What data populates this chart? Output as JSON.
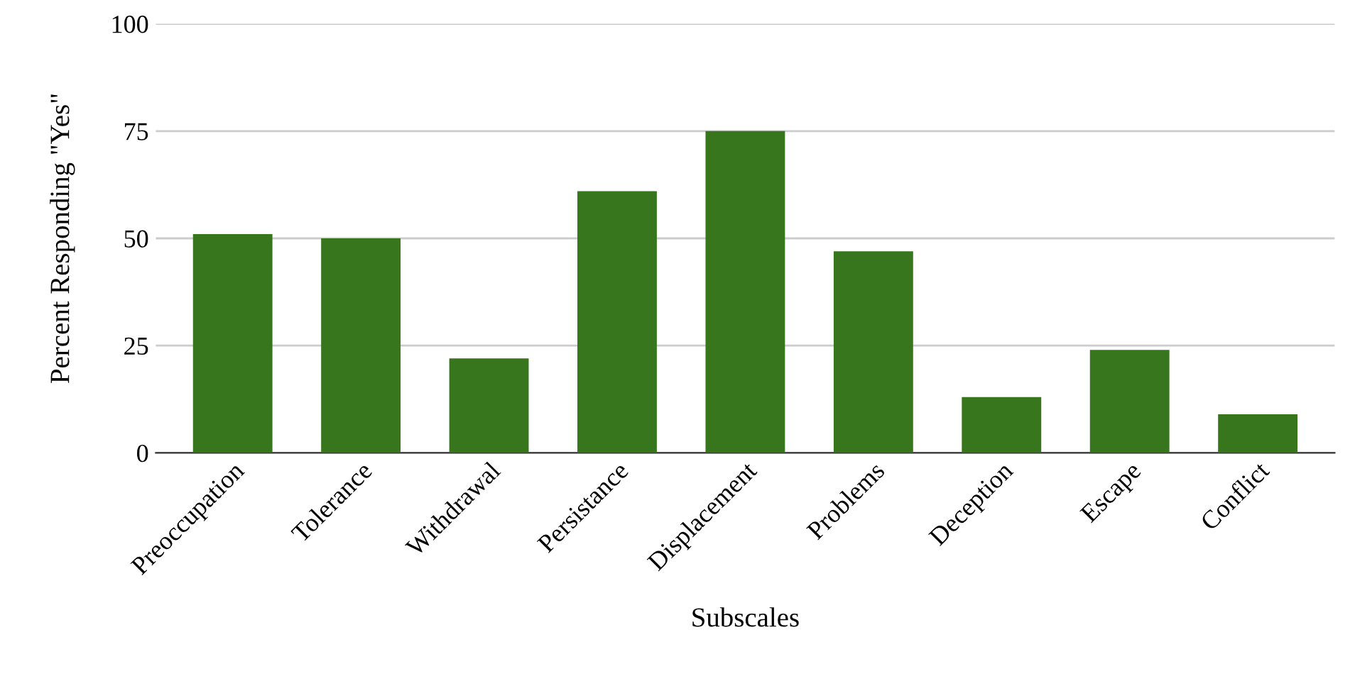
{
  "chart_data": {
    "type": "bar",
    "xlabel": "Subscales",
    "ylabel": "Percent Responding \"Yes\"",
    "categories": [
      "Preoccupation",
      "Tolerance",
      "Withdrawal",
      "Persistance",
      "Displacement",
      "Problems",
      "Deception",
      "Escape",
      "Conflict"
    ],
    "values": [
      51,
      50,
      22,
      61,
      75,
      47,
      13,
      24,
      9
    ],
    "color": "#38761d",
    "ylim": [
      0,
      100
    ],
    "yticks": [
      0,
      25,
      50,
      75,
      100
    ],
    "grid": "y"
  }
}
